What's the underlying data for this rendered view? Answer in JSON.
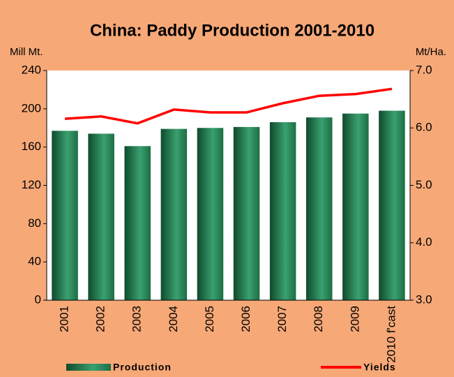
{
  "chart_data": {
    "type": "bar-line",
    "title": "China: Paddy Production 2001-2010",
    "y_label": "Mill Mt.",
    "y2_label": "Mt/Ha.",
    "categories": [
      "2001",
      "2002",
      "2003",
      "2004",
      "2005",
      "2006",
      "2007",
      "2008",
      "2009",
      "2010 f'cast"
    ],
    "series": [
      {
        "name": "Production",
        "type": "bar",
        "color": "#2a8a5a",
        "values": [
          177,
          174,
          161,
          179,
          180,
          181,
          186,
          191,
          195,
          198
        ]
      },
      {
        "name": "Yields",
        "type": "line",
        "axis": "y2",
        "color": "#ff0000",
        "values": [
          6.16,
          6.2,
          6.08,
          6.32,
          6.27,
          6.27,
          6.43,
          6.56,
          6.59,
          6.68
        ]
      }
    ],
    "ylim": [
      0,
      240
    ],
    "yticks": [
      0,
      40,
      80,
      120,
      160,
      200,
      240
    ],
    "y2lim": [
      3,
      7
    ],
    "y2ticks": [
      {
        "value": 3,
        "label": "3.0"
      },
      {
        "value": 4,
        "label": "4.0"
      },
      {
        "value": 5,
        "label": "5.0"
      },
      {
        "value": 6,
        "label": "6.0"
      },
      {
        "value": 7,
        "label": "7.0"
      }
    ],
    "grid": false
  }
}
